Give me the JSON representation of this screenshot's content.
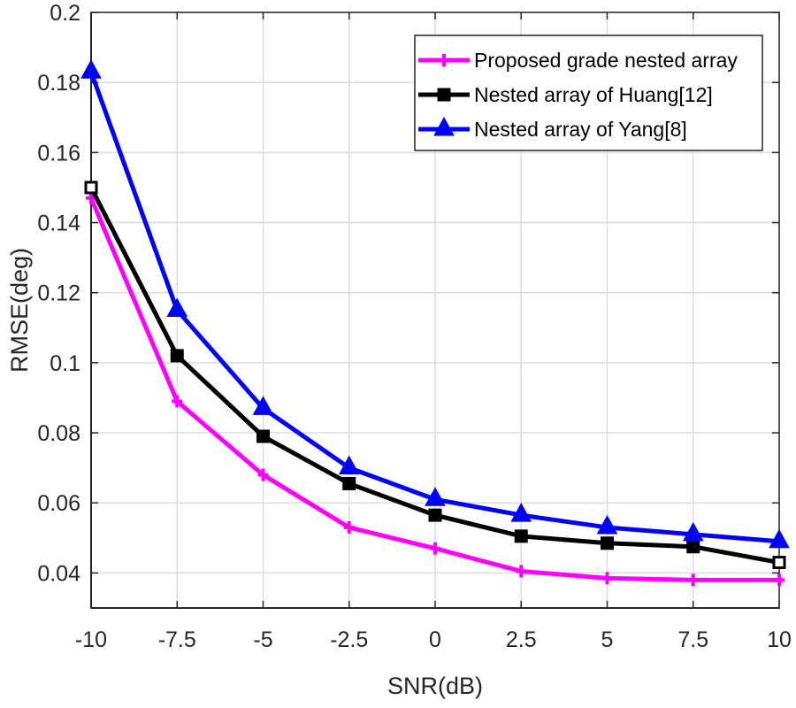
{
  "chart_data": {
    "type": "line",
    "title": "",
    "xlabel": "SNR(dB)",
    "ylabel": "RMSE(deg)",
    "xlim": [
      -10,
      10
    ],
    "ylim": [
      0.03,
      0.2
    ],
    "grid": true,
    "legend_position": "top-right",
    "x": [
      -10,
      -7.5,
      -5,
      -2.5,
      0,
      2.5,
      5,
      7.5,
      10
    ],
    "x_tick_labels": [
      "-10",
      "-7.5",
      "-5",
      "-2.5",
      "0",
      "2.5",
      "5",
      "7.5",
      "10"
    ],
    "y_ticks": [
      0.04,
      0.06,
      0.08,
      0.1,
      0.12,
      0.14,
      0.16,
      0.18,
      0.2
    ],
    "y_tick_labels": [
      "0.04",
      "0.06",
      "0.08",
      "0.1",
      "0.12",
      "0.14",
      "0.16",
      "0.18",
      "0.2"
    ],
    "series": [
      {
        "name": "Proposed grade nested array",
        "color": "#ff00ff",
        "marker": "plus",
        "values": [
          0.147,
          0.089,
          0.068,
          0.053,
          0.047,
          0.0405,
          0.0385,
          0.038,
          0.038
        ]
      },
      {
        "name": "Nested array of Huang[12]",
        "color": "#000000",
        "marker": "square",
        "values": [
          0.15,
          0.102,
          0.079,
          0.0655,
          0.0565,
          0.0505,
          0.0485,
          0.0475,
          0.043
        ]
      },
      {
        "name": "Nested array of Yang[8]",
        "color": "#0000ff",
        "marker": "triangle",
        "values": [
          0.183,
          0.115,
          0.087,
          0.07,
          0.061,
          0.0565,
          0.053,
          0.051,
          0.049
        ]
      }
    ]
  }
}
